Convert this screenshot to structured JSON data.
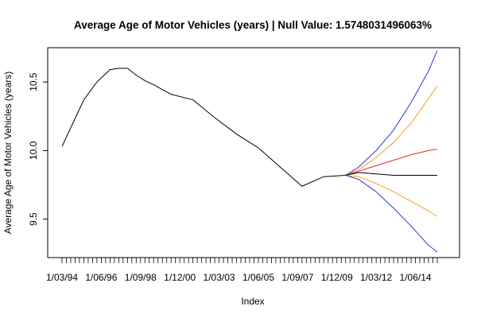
{
  "chart_data": {
    "type": "line",
    "title": "Average Age of Motor Vehicles (years) | Null Value: 1.5748031496063%",
    "xlabel": "Index",
    "ylabel": "Average Age of Motor Vehicles (years)",
    "ylim": [
      9.22,
      10.75
    ],
    "y_ticks": [
      "9.5",
      "10.0",
      "10.5"
    ],
    "x_tick_labels": [
      "1/03/94",
      "1/06/96",
      "1/09/98",
      "1/12/00",
      "1/03/03",
      "1/06/05",
      "1/09/07",
      "1/12/09",
      "1/03/12",
      "1/06/14"
    ],
    "x_tick_positions": [
      0,
      9,
      18,
      27,
      36,
      45,
      54,
      63,
      72,
      81
    ],
    "x_tick_count": 87,
    "grid": false,
    "colors": {
      "history": "#000000",
      "mean": "#e8202a",
      "band80": "#f0a030",
      "band95": "#2e2ee6",
      "forecast_center": "#000000"
    },
    "series": [
      {
        "role": "history",
        "x": [
          0,
          5,
          8,
          11,
          13,
          15,
          17,
          19,
          21,
          25,
          30,
          35,
          40,
          45,
          50,
          55,
          60,
          65
        ],
        "values": [
          10.03,
          10.37,
          10.5,
          10.59,
          10.6,
          10.6,
          10.55,
          10.51,
          10.48,
          10.41,
          10.37,
          10.24,
          10.12,
          10.02,
          9.88,
          9.74,
          9.81,
          9.82
        ]
      },
      {
        "role": "forecast_center",
        "x": [
          65,
          68,
          72,
          76,
          80,
          84,
          86
        ],
        "values": [
          9.82,
          9.84,
          9.83,
          9.82,
          9.82,
          9.82,
          9.82
        ]
      },
      {
        "role": "mean",
        "x": [
          65,
          68,
          72,
          76,
          80,
          84,
          86
        ],
        "values": [
          9.82,
          9.85,
          9.89,
          9.93,
          9.97,
          10.0,
          10.01
        ]
      },
      {
        "role": "upper80",
        "x": [
          65,
          68,
          72,
          76,
          80,
          84,
          86
        ],
        "values": [
          9.82,
          9.86,
          9.95,
          10.06,
          10.2,
          10.38,
          10.47
        ]
      },
      {
        "role": "lower80",
        "x": [
          65,
          68,
          72,
          76,
          80,
          84,
          86
        ],
        "values": [
          9.82,
          9.81,
          9.76,
          9.7,
          9.63,
          9.56,
          9.52
        ]
      },
      {
        "role": "upper95",
        "x": [
          65,
          68,
          72,
          76,
          80,
          84,
          86
        ],
        "values": [
          9.82,
          9.88,
          10.0,
          10.15,
          10.35,
          10.58,
          10.73
        ]
      },
      {
        "role": "lower95",
        "x": [
          65,
          68,
          72,
          76,
          80,
          84,
          86
        ],
        "values": [
          9.82,
          9.79,
          9.7,
          9.58,
          9.45,
          9.31,
          9.26
        ]
      }
    ]
  }
}
